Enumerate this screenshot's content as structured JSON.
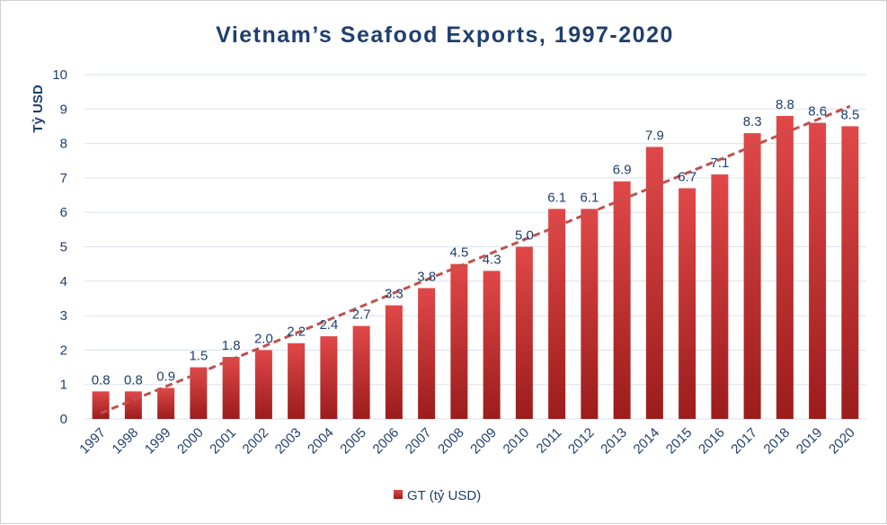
{
  "chart_data": {
    "type": "bar",
    "title": "Vietnam’s Seafood Exports, 1997-2020",
    "ylabel": "Tỷ USD",
    "xlabel": "",
    "ylim": [
      0,
      10
    ],
    "yticks": [
      "0",
      "1",
      "2",
      "3",
      "4",
      "5",
      "6",
      "7",
      "8",
      "9",
      "10"
    ],
    "grid": true,
    "legend_position": "bottom",
    "categories": [
      "1997",
      "1998",
      "1999",
      "2000",
      "2001",
      "2002",
      "2003",
      "2004",
      "2005",
      "2006",
      "2007",
      "2008",
      "2009",
      "2010",
      "2011",
      "2012",
      "2013",
      "2014",
      "2015",
      "2016",
      "2017",
      "2018",
      "2019",
      "2020"
    ],
    "series": [
      {
        "name": "GT (tỷ USD)",
        "values": [
          0.8,
          0.8,
          0.9,
          1.5,
          1.8,
          2.0,
          2.2,
          2.4,
          2.7,
          3.3,
          3.8,
          4.5,
          4.3,
          5.0,
          6.1,
          6.1,
          6.9,
          7.9,
          6.7,
          7.1,
          8.3,
          8.8,
          8.6,
          8.5
        ],
        "labels": [
          "0.8",
          "0.8",
          "0.9",
          "1.5",
          "1.8",
          "2.0",
          "2.2",
          "2.4",
          "2.7",
          "3.3",
          "3.8",
          "4.5",
          "4.3",
          "5.0",
          "6.1",
          "6.1",
          "6.9",
          "7.9",
          "6.7",
          "7.1",
          "8.3",
          "8.8",
          "8.6",
          "8.5"
        ]
      }
    ],
    "trendline": {
      "type": "linear",
      "style": "dashed"
    },
    "colors": {
      "bar_light": "#e04848",
      "bar_dark": "#9c1c1c",
      "trendline": "#c0504d",
      "text": "#1f3f6e",
      "grid": "#d9e2ec"
    }
  }
}
